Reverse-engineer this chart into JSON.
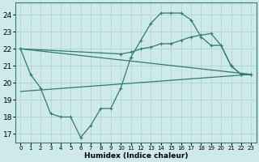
{
  "xlabel": "Humidex (Indice chaleur)",
  "xlim": [
    -0.5,
    23.5
  ],
  "ylim": [
    16.5,
    24.7
  ],
  "yticks": [
    17,
    18,
    19,
    20,
    21,
    22,
    23,
    24
  ],
  "xticks": [
    0,
    1,
    2,
    3,
    4,
    5,
    6,
    7,
    8,
    9,
    10,
    11,
    12,
    13,
    14,
    15,
    16,
    17,
    18,
    19,
    20,
    21,
    22,
    23
  ],
  "bg_color": "#cde9e9",
  "line_color": "#2e7d6e",
  "grid_color": "#aecece",
  "line1": {
    "x": [
      0,
      1,
      2,
      3,
      4,
      5,
      6,
      7,
      8,
      9,
      10,
      11,
      12,
      13,
      14,
      15,
      16,
      17,
      18,
      19,
      20,
      21,
      22,
      23
    ],
    "y": [
      22.0,
      20.5,
      19.7,
      18.2,
      18.0,
      18.0,
      16.8,
      17.5,
      18.5,
      18.5,
      19.7,
      21.5,
      22.5,
      23.5,
      24.1,
      24.1,
      24.1,
      23.7,
      22.7,
      22.2,
      22.2,
      21.0,
      20.5,
      20.5
    ]
  },
  "line2": {
    "x": [
      0,
      10,
      11,
      12,
      13,
      14,
      15,
      16,
      17,
      18,
      19,
      20,
      21,
      22,
      23
    ],
    "y": [
      22.0,
      21.7,
      21.8,
      22.0,
      22.1,
      22.3,
      22.3,
      22.5,
      22.7,
      22.8,
      22.9,
      22.2,
      21.0,
      20.5,
      20.5
    ]
  },
  "line3_x": [
    0,
    23
  ],
  "line3_y": [
    22.0,
    20.5
  ],
  "line4_x": [
    0,
    23
  ],
  "line4_y": [
    19.5,
    20.5
  ]
}
